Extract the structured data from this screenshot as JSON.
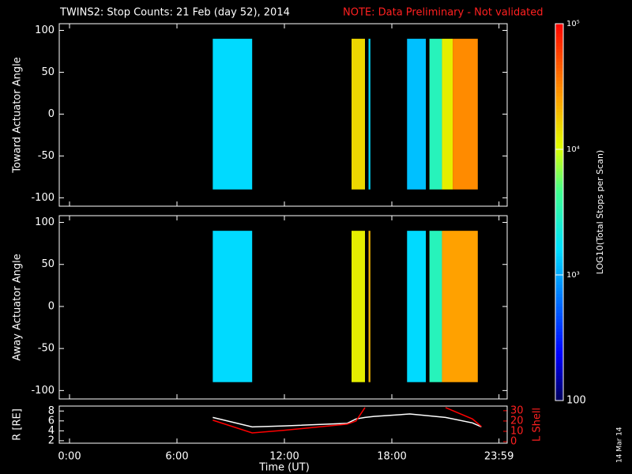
{
  "title": "TWINS2: Stop Counts: 21 Feb (day  52), 2014",
  "note": "NOTE: Data Preliminary - Not validated",
  "side_label": "14 Mar 14",
  "colorbar": {
    "label": "LOG10(Total Stops per Scan)",
    "lim": [
      100,
      100000
    ],
    "log": true,
    "ticks": [
      100,
      {
        "value": 1000,
        "label": "10³"
      },
      {
        "value": 10000,
        "label": "10⁴"
      },
      {
        "value": 100000,
        "label": "10⁵"
      }
    ]
  },
  "chart_data": [
    {
      "type": "heatmap",
      "ylabel": "Toward Actuator Angle",
      "xlim": [
        0,
        24
      ],
      "ylim": [
        -110,
        108
      ],
      "yticks": [
        -100,
        -50,
        0,
        50,
        100
      ],
      "angle_range": [
        -90,
        90
      ],
      "segments": [
        {
          "start": 8.0,
          "end": 10.2,
          "value": 1500
        },
        {
          "start": 15.75,
          "end": 16.5,
          "value": 15000
        },
        {
          "start": 16.7,
          "end": 16.8,
          "value": 1500
        },
        {
          "start": 18.85,
          "end": 19.9,
          "value": 1200
        },
        {
          "start": 20.1,
          "end": 20.8,
          "value": 3000
        },
        {
          "start": 20.8,
          "end": 21.4,
          "value": 12000
        },
        {
          "start": 21.4,
          "end": 22.8,
          "value": 30000
        }
      ]
    },
    {
      "type": "heatmap",
      "ylabel": "Away Actuator Angle",
      "xlim": [
        0,
        24
      ],
      "ylim": [
        -110,
        108
      ],
      "yticks": [
        -100,
        -50,
        0,
        50,
        100
      ],
      "angle_range": [
        -90,
        90
      ],
      "segments": [
        {
          "start": 8.0,
          "end": 10.2,
          "value": 1500
        },
        {
          "start": 15.75,
          "end": 16.5,
          "value": 12000
        },
        {
          "start": 16.7,
          "end": 16.8,
          "value": 20000
        },
        {
          "start": 18.85,
          "end": 19.9,
          "value": 1500
        },
        {
          "start": 20.1,
          "end": 20.8,
          "value": 3000
        },
        {
          "start": 20.8,
          "end": 22.8,
          "value": 25000
        }
      ]
    },
    {
      "type": "line",
      "xlabel": "Time (UT)",
      "ylabel": "R [RE]",
      "y2label": "L Shell",
      "xlim": [
        0,
        24
      ],
      "xticks": [
        {
          "value": 0,
          "label": "0:00"
        },
        {
          "value": 6,
          "label": "6:00"
        },
        {
          "value": 12,
          "label": "12:00"
        },
        {
          "value": 18,
          "label": "18:00"
        },
        {
          "value": 23.983,
          "label": "23:59"
        }
      ],
      "ylim": [
        1.5,
        9
      ],
      "yticks": [
        2,
        4,
        6,
        8
      ],
      "y2lim": [
        -1.5,
        34.5
      ],
      "y2ticks": [
        0,
        10,
        20,
        30
      ],
      "x": [
        8.0,
        10.2,
        12,
        15.5,
        16,
        16.5,
        17,
        19,
        21,
        22.5,
        23
      ],
      "series": [
        {
          "name": "R",
          "color": "#ffffff",
          "values": [
            6.7,
            4.8,
            5.0,
            5.5,
            6.4,
            6.7,
            6.9,
            7.4,
            6.7,
            5.6,
            4.8
          ]
        },
        {
          "name": "L Shell",
          "color": "#ff0000",
          "axis": "y2",
          "values": [
            20.8,
            8.5,
            11,
            17,
            20,
            33,
            null,
            null,
            33,
            22,
            14.6
          ]
        }
      ]
    }
  ]
}
